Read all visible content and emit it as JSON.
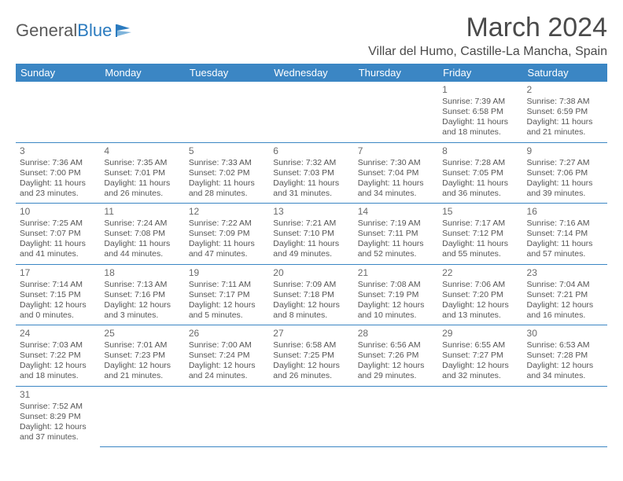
{
  "brand": {
    "part1": "General",
    "part2": "Blue"
  },
  "title": "March 2024",
  "location": "Villar del Humo, Castille-La Mancha, Spain",
  "colors": {
    "header_bg": "#3b86c4",
    "header_text": "#ffffff",
    "body_text": "#555555",
    "rule": "#3b86c4",
    "brand_gray": "#5a5a5a",
    "brand_blue": "#2b7bbf"
  },
  "weekdays": [
    "Sunday",
    "Monday",
    "Tuesday",
    "Wednesday",
    "Thursday",
    "Friday",
    "Saturday"
  ],
  "weeks": [
    [
      null,
      null,
      null,
      null,
      null,
      {
        "d": "1",
        "sr": "Sunrise: 7:39 AM",
        "ss": "Sunset: 6:58 PM",
        "dl1": "Daylight: 11 hours",
        "dl2": "and 18 minutes."
      },
      {
        "d": "2",
        "sr": "Sunrise: 7:38 AM",
        "ss": "Sunset: 6:59 PM",
        "dl1": "Daylight: 11 hours",
        "dl2": "and 21 minutes."
      }
    ],
    [
      {
        "d": "3",
        "sr": "Sunrise: 7:36 AM",
        "ss": "Sunset: 7:00 PM",
        "dl1": "Daylight: 11 hours",
        "dl2": "and 23 minutes."
      },
      {
        "d": "4",
        "sr": "Sunrise: 7:35 AM",
        "ss": "Sunset: 7:01 PM",
        "dl1": "Daylight: 11 hours",
        "dl2": "and 26 minutes."
      },
      {
        "d": "5",
        "sr": "Sunrise: 7:33 AM",
        "ss": "Sunset: 7:02 PM",
        "dl1": "Daylight: 11 hours",
        "dl2": "and 28 minutes."
      },
      {
        "d": "6",
        "sr": "Sunrise: 7:32 AM",
        "ss": "Sunset: 7:03 PM",
        "dl1": "Daylight: 11 hours",
        "dl2": "and 31 minutes."
      },
      {
        "d": "7",
        "sr": "Sunrise: 7:30 AM",
        "ss": "Sunset: 7:04 PM",
        "dl1": "Daylight: 11 hours",
        "dl2": "and 34 minutes."
      },
      {
        "d": "8",
        "sr": "Sunrise: 7:28 AM",
        "ss": "Sunset: 7:05 PM",
        "dl1": "Daylight: 11 hours",
        "dl2": "and 36 minutes."
      },
      {
        "d": "9",
        "sr": "Sunrise: 7:27 AM",
        "ss": "Sunset: 7:06 PM",
        "dl1": "Daylight: 11 hours",
        "dl2": "and 39 minutes."
      }
    ],
    [
      {
        "d": "10",
        "sr": "Sunrise: 7:25 AM",
        "ss": "Sunset: 7:07 PM",
        "dl1": "Daylight: 11 hours",
        "dl2": "and 41 minutes."
      },
      {
        "d": "11",
        "sr": "Sunrise: 7:24 AM",
        "ss": "Sunset: 7:08 PM",
        "dl1": "Daylight: 11 hours",
        "dl2": "and 44 minutes."
      },
      {
        "d": "12",
        "sr": "Sunrise: 7:22 AM",
        "ss": "Sunset: 7:09 PM",
        "dl1": "Daylight: 11 hours",
        "dl2": "and 47 minutes."
      },
      {
        "d": "13",
        "sr": "Sunrise: 7:21 AM",
        "ss": "Sunset: 7:10 PM",
        "dl1": "Daylight: 11 hours",
        "dl2": "and 49 minutes."
      },
      {
        "d": "14",
        "sr": "Sunrise: 7:19 AM",
        "ss": "Sunset: 7:11 PM",
        "dl1": "Daylight: 11 hours",
        "dl2": "and 52 minutes."
      },
      {
        "d": "15",
        "sr": "Sunrise: 7:17 AM",
        "ss": "Sunset: 7:12 PM",
        "dl1": "Daylight: 11 hours",
        "dl2": "and 55 minutes."
      },
      {
        "d": "16",
        "sr": "Sunrise: 7:16 AM",
        "ss": "Sunset: 7:14 PM",
        "dl1": "Daylight: 11 hours",
        "dl2": "and 57 minutes."
      }
    ],
    [
      {
        "d": "17",
        "sr": "Sunrise: 7:14 AM",
        "ss": "Sunset: 7:15 PM",
        "dl1": "Daylight: 12 hours",
        "dl2": "and 0 minutes."
      },
      {
        "d": "18",
        "sr": "Sunrise: 7:13 AM",
        "ss": "Sunset: 7:16 PM",
        "dl1": "Daylight: 12 hours",
        "dl2": "and 3 minutes."
      },
      {
        "d": "19",
        "sr": "Sunrise: 7:11 AM",
        "ss": "Sunset: 7:17 PM",
        "dl1": "Daylight: 12 hours",
        "dl2": "and 5 minutes."
      },
      {
        "d": "20",
        "sr": "Sunrise: 7:09 AM",
        "ss": "Sunset: 7:18 PM",
        "dl1": "Daylight: 12 hours",
        "dl2": "and 8 minutes."
      },
      {
        "d": "21",
        "sr": "Sunrise: 7:08 AM",
        "ss": "Sunset: 7:19 PM",
        "dl1": "Daylight: 12 hours",
        "dl2": "and 10 minutes."
      },
      {
        "d": "22",
        "sr": "Sunrise: 7:06 AM",
        "ss": "Sunset: 7:20 PM",
        "dl1": "Daylight: 12 hours",
        "dl2": "and 13 minutes."
      },
      {
        "d": "23",
        "sr": "Sunrise: 7:04 AM",
        "ss": "Sunset: 7:21 PM",
        "dl1": "Daylight: 12 hours",
        "dl2": "and 16 minutes."
      }
    ],
    [
      {
        "d": "24",
        "sr": "Sunrise: 7:03 AM",
        "ss": "Sunset: 7:22 PM",
        "dl1": "Daylight: 12 hours",
        "dl2": "and 18 minutes."
      },
      {
        "d": "25",
        "sr": "Sunrise: 7:01 AM",
        "ss": "Sunset: 7:23 PM",
        "dl1": "Daylight: 12 hours",
        "dl2": "and 21 minutes."
      },
      {
        "d": "26",
        "sr": "Sunrise: 7:00 AM",
        "ss": "Sunset: 7:24 PM",
        "dl1": "Daylight: 12 hours",
        "dl2": "and 24 minutes."
      },
      {
        "d": "27",
        "sr": "Sunrise: 6:58 AM",
        "ss": "Sunset: 7:25 PM",
        "dl1": "Daylight: 12 hours",
        "dl2": "and 26 minutes."
      },
      {
        "d": "28",
        "sr": "Sunrise: 6:56 AM",
        "ss": "Sunset: 7:26 PM",
        "dl1": "Daylight: 12 hours",
        "dl2": "and 29 minutes."
      },
      {
        "d": "29",
        "sr": "Sunrise: 6:55 AM",
        "ss": "Sunset: 7:27 PM",
        "dl1": "Daylight: 12 hours",
        "dl2": "and 32 minutes."
      },
      {
        "d": "30",
        "sr": "Sunrise: 6:53 AM",
        "ss": "Sunset: 7:28 PM",
        "dl1": "Daylight: 12 hours",
        "dl2": "and 34 minutes."
      }
    ],
    [
      {
        "d": "31",
        "sr": "Sunrise: 7:52 AM",
        "ss": "Sunset: 8:29 PM",
        "dl1": "Daylight: 12 hours",
        "dl2": "and 37 minutes."
      },
      null,
      null,
      null,
      null,
      null,
      null
    ]
  ]
}
